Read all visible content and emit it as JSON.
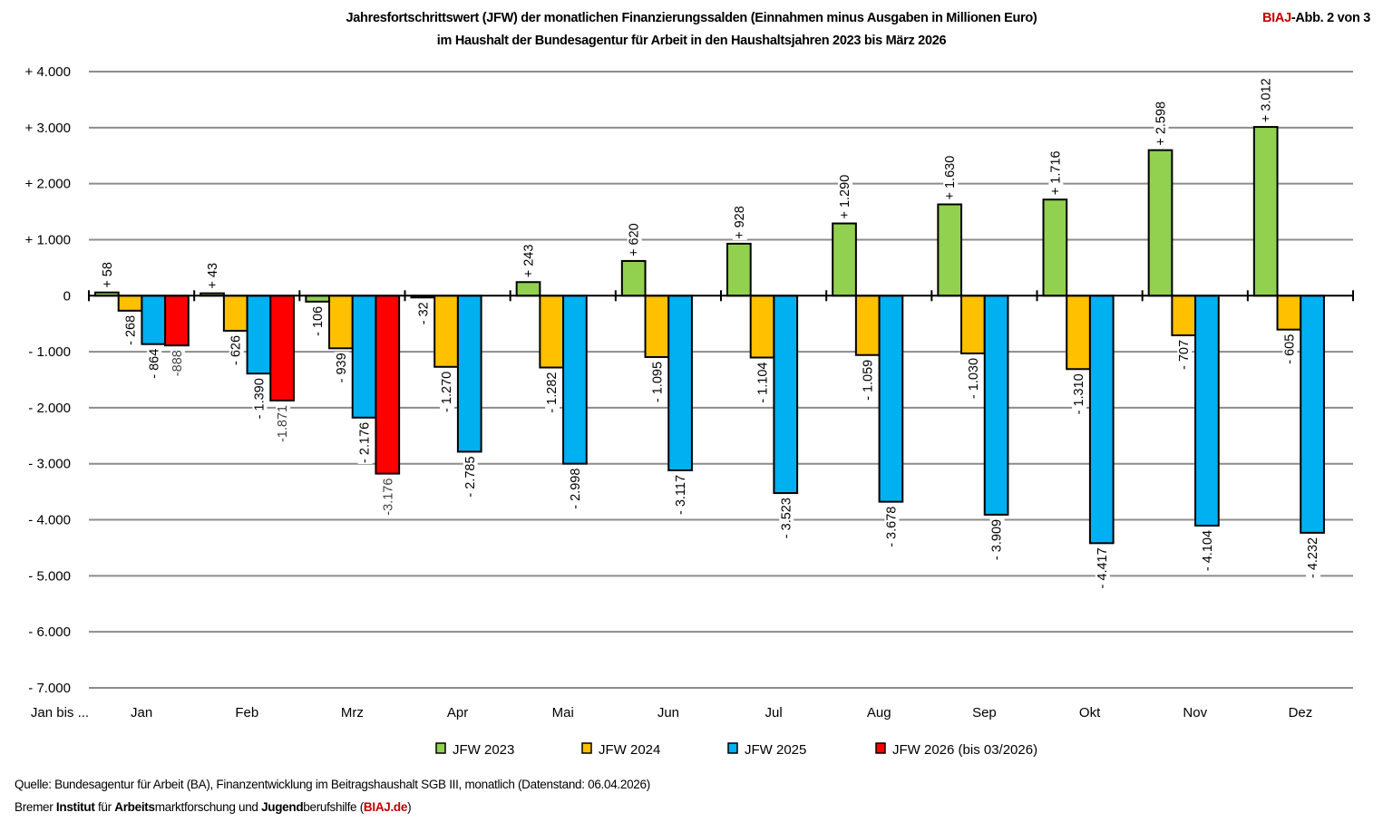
{
  "header": {
    "title_line1": "Jahresfortschrittswert (JFW) der monatlichen Finanzierungssalden (Einnahmen minus Ausgaben in Millionen Euro)",
    "title_line2": "im Haushalt der Bundesagentur für Arbeit in den Haushaltsjahren 2023 bis März 2026",
    "badge_brand": "BIAJ",
    "badge_rest": "-Abb. 2 von 3"
  },
  "footer": {
    "source": "Quelle: Bundesagentur für Arbeit (BA), Finanzentwicklung im Beitragshaushalt SGB III, monatlich (Datenstand: 06.04.2026)",
    "org_parts": [
      "Bremer ",
      "Institut",
      " für ",
      "Arbeits",
      "marktforschung und ",
      "Jugend",
      "berufshilfe (",
      "BIAJ.de",
      ")"
    ]
  },
  "chart_data": {
    "type": "bar",
    "title": "Jahresfortschrittswert (JFW) der monatlichen Finanzierungssalden (Einnahmen minus Ausgaben in Millionen Euro) im Haushalt der Bundesagentur für Arbeit in den Haushaltsjahren 2023 bis März 2026",
    "xlabel": "Jan bis ...",
    "ylabel": "",
    "categories": [
      "Jan",
      "Feb",
      "Mrz",
      "Apr",
      "Mai",
      "Jun",
      "Jul",
      "Aug",
      "Sep",
      "Okt",
      "Nov",
      "Dez"
    ],
    "ylim": [
      -7000,
      4000
    ],
    "yticks": [
      4000,
      3000,
      2000,
      1000,
      0,
      -1000,
      -2000,
      -3000,
      -4000,
      -5000,
      -6000,
      -7000
    ],
    "ytick_labels": [
      "+ 4.000",
      "+ 3.000",
      "+ 2.000",
      "+ 1.000",
      "0",
      "- 1.000",
      "- 2.000",
      "- 3.000",
      "- 4.000",
      "- 5.000",
      "- 6.000",
      "- 7.000"
    ],
    "grid": true,
    "legend_position": "bottom",
    "series": [
      {
        "name": "JFW 2023",
        "color": "#92d050",
        "values": [
          58,
          43,
          -106,
          -32,
          243,
          620,
          928,
          1290,
          1630,
          1716,
          2598,
          3012
        ],
        "labels": [
          "+ 58",
          "+ 43",
          "- 106",
          "- 32",
          "+ 243",
          "+ 620",
          "+ 928",
          "+ 1.290",
          "+ 1.630",
          "+ 1.716",
          "+ 2.598",
          "+ 3.012"
        ]
      },
      {
        "name": "JFW 2024",
        "color": "#ffc000",
        "values": [
          -268,
          -626,
          -939,
          -1270,
          -1282,
          -1095,
          -1104,
          -1059,
          -1030,
          -1310,
          -707,
          -605
        ],
        "labels": [
          "- 268",
          "- 626",
          "- 939",
          "- 1.270",
          "- 1.282",
          "- 1.095",
          "- 1.104",
          "- 1.059",
          "- 1.030",
          "- 1.310",
          "- 707",
          "- 605"
        ]
      },
      {
        "name": "JFW 2025",
        "color": "#00b0f0",
        "values": [
          -864,
          -1390,
          -2176,
          -2785,
          -2998,
          -3117,
          -3523,
          -3678,
          -3909,
          -4417,
          -4104,
          -4232
        ],
        "labels": [
          "- 864",
          "- 1.390",
          "- 2.176",
          "- 2.785",
          "- 2.998",
          "- 3.117",
          "- 3.523",
          "- 3.678",
          "- 3.909",
          "- 4.417",
          "- 4.104",
          "- 4.232"
        ]
      },
      {
        "name": "JFW 2026 (bis 03/2026)",
        "color": "#ff0000",
        "values": [
          -888,
          -1871,
          -3176,
          null,
          null,
          null,
          null,
          null,
          null,
          null,
          null,
          null
        ],
        "labels": [
          "-888",
          "-1.871",
          "-3.176",
          null,
          null,
          null,
          null,
          null,
          null,
          null,
          null,
          null
        ]
      }
    ]
  }
}
